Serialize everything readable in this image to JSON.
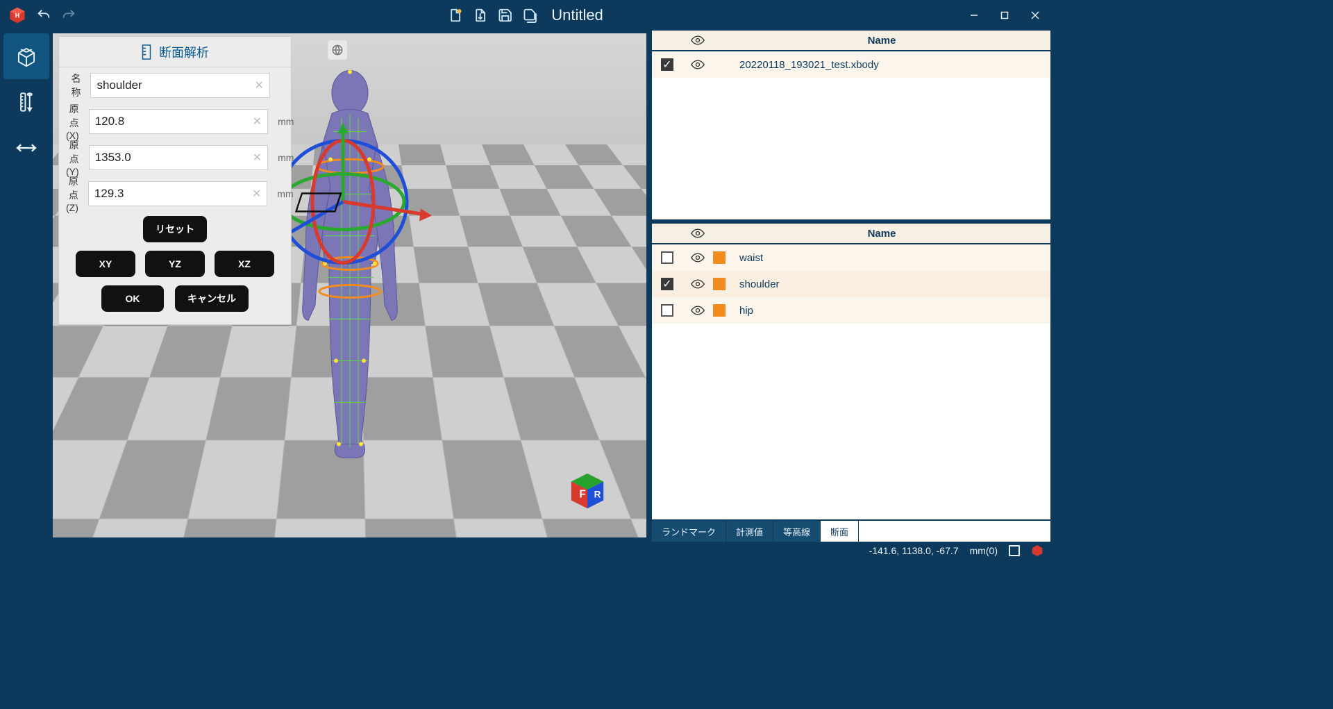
{
  "colors": {
    "brand_bg": "#0d3a5c",
    "panel_bg": "#ececec",
    "accent_text": "#0d5b8f",
    "swatch": "#f28c1f",
    "list_header_bg": "#f6efe4",
    "list_sel_bg": "#faefe0",
    "axis_x": "#d83a2e",
    "axis_y": "#2aa82f",
    "axis_z": "#1f4fd6",
    "body_fill": "#7b77b6"
  },
  "titlebar": {
    "doc_title": "Untitled"
  },
  "panel": {
    "title": "断面解析",
    "fields": {
      "name_label": "名称",
      "name_value": "shoulder",
      "x_label": "原点(X)",
      "x_value": "120.8",
      "y_label": "原点(Y)",
      "y_value": "1353.0",
      "z_label": "原点(Z)",
      "z_value": "129.3",
      "unit": "mm"
    },
    "buttons": {
      "reset": "リセット",
      "xy": "XY",
      "yz": "YZ",
      "xz": "XZ",
      "ok": "OK",
      "cancel": "キャンセル"
    }
  },
  "right": {
    "header_name": "Name",
    "top_items": [
      {
        "checked": true,
        "label": "20220118_193021_test.xbody"
      }
    ],
    "bottom_items": [
      {
        "checked": false,
        "label": "waist"
      },
      {
        "checked": true,
        "label": "shoulder"
      },
      {
        "checked": false,
        "label": "hip"
      }
    ],
    "tabs": {
      "landmark": "ランドマーク",
      "measure": "計測値",
      "contour": "等高線",
      "section": "断面"
    }
  },
  "status": {
    "coords": "-141.6, 1138.0, -67.7",
    "unit": "mm(0)"
  },
  "navcube": {
    "front": "F",
    "right": "R"
  }
}
